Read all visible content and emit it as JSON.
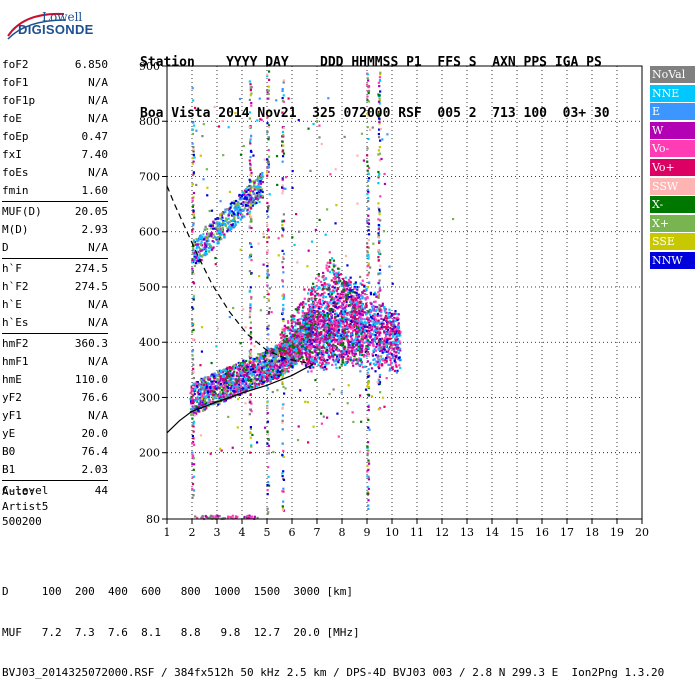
{
  "logo": {
    "line1": "Lowell",
    "line2": "DIGISONDE"
  },
  "header": {
    "labels": "Station    YYYY DAY    DDD HHMMSS P1  FFS S  AXN PPS IGA PS",
    "values": "Boa Vista 2014 Nov21  325 072000 RSF  005 2  713 100  03+ 30"
  },
  "params": [
    {
      "name": "foF2",
      "value": "6.850"
    },
    {
      "name": "foF1",
      "value": "N/A"
    },
    {
      "name": "foF1p",
      "value": "N/A"
    },
    {
      "name": "foE",
      "value": "N/A"
    },
    {
      "name": "foEp",
      "value": "0.47"
    },
    {
      "name": "fxI",
      "value": "7.40"
    },
    {
      "name": "foEs",
      "value": "N/A"
    },
    {
      "name": "fmin",
      "value": "1.60"
    },
    {
      "name": "MUF(D)",
      "value": "20.05"
    },
    {
      "name": "M(D)",
      "value": "2.93"
    },
    {
      "name": "D",
      "value": "N/A"
    },
    {
      "name": "h`F",
      "value": "274.5"
    },
    {
      "name": "h`F2",
      "value": "274.5"
    },
    {
      "name": "h`E",
      "value": "N/A"
    },
    {
      "name": "h`Es",
      "value": "N/A"
    },
    {
      "name": "hmF2",
      "value": "360.3"
    },
    {
      "name": "hmF1",
      "value": "N/A"
    },
    {
      "name": "hmE",
      "value": "110.0"
    },
    {
      "name": "yF2",
      "value": "76.6"
    },
    {
      "name": "yF1",
      "value": "N/A"
    },
    {
      "name": "yE",
      "value": "20.0"
    },
    {
      "name": "B0",
      "value": "76.4"
    },
    {
      "name": "B1",
      "value": "2.03"
    },
    {
      "name": "C-level",
      "value": "44"
    }
  ],
  "auto": {
    "line1": "Auto:",
    "line2": "Artist5",
    "line3": "500200"
  },
  "legend": [
    {
      "label": "NoVal",
      "color": "#808080"
    },
    {
      "label": "NNE",
      "color": "#00c8ff"
    },
    {
      "label": "E",
      "color": "#3c96ff"
    },
    {
      "label": "W",
      "color": "#b400b4"
    },
    {
      "label": "Vo-",
      "color": "#ff3cb4"
    },
    {
      "label": "Vo+",
      "color": "#dc0064"
    },
    {
      "label": "SSW",
      "color": "#ffb4b4"
    },
    {
      "label": "X-",
      "color": "#007800"
    },
    {
      "label": "X+",
      "color": "#78b450"
    },
    {
      "label": "SSE",
      "color": "#c8c800"
    },
    {
      "label": "NNW",
      "color": "#0000dc"
    }
  ],
  "chart_data": {
    "type": "scatter",
    "xlim": [
      1,
      20
    ],
    "ylim": [
      80,
      900
    ],
    "x_ticks": [
      "1",
      "2",
      "3",
      "4",
      "5",
      "6",
      "7",
      "8",
      "9",
      "10",
      "11",
      "12",
      "13",
      "14",
      "15",
      "16",
      "17",
      "18",
      "19",
      "20"
    ],
    "y_ticks": [
      "80",
      "200",
      "300",
      "400",
      "500",
      "600",
      "700",
      "800",
      "900"
    ],
    "grid": true,
    "x_profile_curve": [
      [
        1.0,
        236
      ],
      [
        1.5,
        258
      ],
      [
        2.0,
        275
      ],
      [
        3.0,
        292
      ],
      [
        4.0,
        308
      ],
      [
        5.0,
        322
      ],
      [
        6.0,
        340
      ],
      [
        6.5,
        352
      ],
      [
        6.85,
        360
      ]
    ],
    "dashed_curve": [
      [
        1.0,
        683
      ],
      [
        1.3,
        650
      ],
      [
        1.7,
        610
      ],
      [
        2.2,
        560
      ],
      [
        2.8,
        505
      ],
      [
        3.5,
        455
      ],
      [
        4.2,
        415
      ],
      [
        5.0,
        385
      ],
      [
        5.8,
        370
      ],
      [
        6.85,
        360
      ]
    ],
    "trace_traces": [
      {
        "name": "F-trace",
        "from": [
          2.0,
          290
        ],
        "to": [
          6.8,
          390
        ]
      },
      {
        "name": "cusp",
        "from": [
          7.0,
          350
        ],
        "to": [
          10.0,
          400
        ]
      },
      {
        "name": "oblique",
        "from": [
          2.0,
          560
        ],
        "to": [
          4.8,
          720
        ]
      }
    ]
  },
  "bottom": {
    "line1": "D     100  200  400  600   800  1000  1500  3000 [km]",
    "line2": "MUF   7.2  7.3  7.6  8.1   8.8   9.8  12.7  20.0 [MHz]",
    "line3": "BVJ03_2014325072000.RSF / 384fx512h 50 kHz 2.5 km / DPS-4D BVJ03 003 / 2.8 N 299.3 E  Ion2Png 1.3.20"
  }
}
